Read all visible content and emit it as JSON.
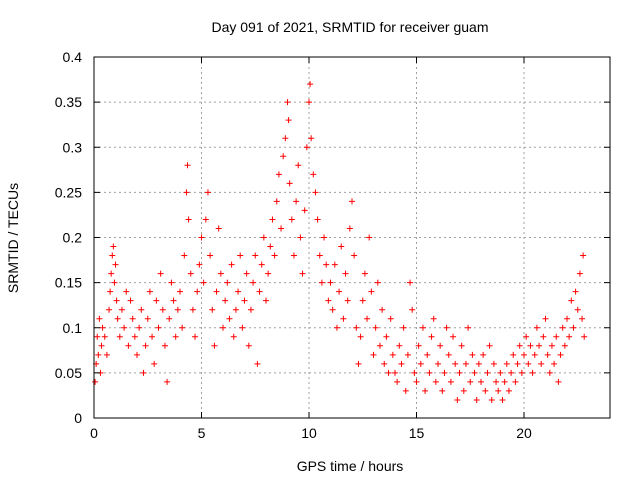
{
  "chart_data": {
    "type": "scatter",
    "title": "Day 091 of 2021, SRMTID for receiver guam",
    "xlabel": "GPS time / hours",
    "ylabel": "SRMTID / TECUs",
    "xlim": [
      0,
      24
    ],
    "ylim": [
      0,
      0.4
    ],
    "x_ticks": [
      0,
      5,
      10,
      15,
      20
    ],
    "x_tick_labels": [
      "0",
      "5",
      "10",
      "15",
      "20"
    ],
    "y_ticks": [
      0,
      0.05,
      0.1,
      0.15,
      0.2,
      0.25,
      0.3,
      0.35,
      0.4
    ],
    "y_tick_labels": [
      "0",
      "0.05",
      "0.1",
      "0.15",
      "0.2",
      "0.25",
      "0.3",
      "0.35",
      "0.4"
    ],
    "grid": true,
    "marker": "+",
    "marker_color": "#ff0000",
    "series": [
      {
        "name": "SRMTID",
        "points": [
          [
            0.05,
            0.04
          ],
          [
            0.1,
            0.06
          ],
          [
            0.15,
            0.09
          ],
          [
            0.2,
            0.07
          ],
          [
            0.25,
            0.11
          ],
          [
            0.3,
            0.05
          ],
          [
            0.35,
            0.08
          ],
          [
            0.4,
            0.1
          ],
          [
            0.5,
            0.09
          ],
          [
            0.6,
            0.07
          ],
          [
            0.7,
            0.12
          ],
          [
            0.75,
            0.14
          ],
          [
            0.8,
            0.16
          ],
          [
            0.85,
            0.18
          ],
          [
            0.9,
            0.19
          ],
          [
            0.95,
            0.15
          ],
          [
            1.0,
            0.17
          ],
          [
            1.05,
            0.13
          ],
          [
            1.1,
            0.11
          ],
          [
            1.2,
            0.09
          ],
          [
            1.3,
            0.12
          ],
          [
            1.4,
            0.1
          ],
          [
            1.5,
            0.14
          ],
          [
            1.6,
            0.08
          ],
          [
            1.7,
            0.13
          ],
          [
            1.8,
            0.11
          ],
          [
            1.9,
            0.09
          ],
          [
            2.0,
            0.07
          ],
          [
            2.1,
            0.1
          ],
          [
            2.2,
            0.12
          ],
          [
            2.3,
            0.05
          ],
          [
            2.4,
            0.08
          ],
          [
            2.5,
            0.11
          ],
          [
            2.6,
            0.14
          ],
          [
            2.7,
            0.09
          ],
          [
            2.8,
            0.06
          ],
          [
            2.9,
            0.13
          ],
          [
            3.0,
            0.1
          ],
          [
            3.1,
            0.16
          ],
          [
            3.2,
            0.12
          ],
          [
            3.3,
            0.08
          ],
          [
            3.4,
            0.04
          ],
          [
            3.5,
            0.11
          ],
          [
            3.6,
            0.15
          ],
          [
            3.7,
            0.13
          ],
          [
            3.8,
            0.09
          ],
          [
            3.9,
            0.12
          ],
          [
            4.0,
            0.14
          ],
          [
            4.1,
            0.1
          ],
          [
            4.2,
            0.18
          ],
          [
            4.3,
            0.25
          ],
          [
            4.35,
            0.28
          ],
          [
            4.4,
            0.22
          ],
          [
            4.5,
            0.16
          ],
          [
            4.6,
            0.12
          ],
          [
            4.7,
            0.09
          ],
          [
            4.8,
            0.14
          ],
          [
            4.9,
            0.17
          ],
          [
            5.0,
            0.2
          ],
          [
            5.1,
            0.15
          ],
          [
            5.2,
            0.22
          ],
          [
            5.3,
            0.25
          ],
          [
            5.4,
            0.18
          ],
          [
            5.5,
            0.12
          ],
          [
            5.6,
            0.08
          ],
          [
            5.7,
            0.14
          ],
          [
            5.8,
            0.21
          ],
          [
            5.9,
            0.16
          ],
          [
            6.0,
            0.1
          ],
          [
            6.1,
            0.13
          ],
          [
            6.2,
            0.15
          ],
          [
            6.3,
            0.11
          ],
          [
            6.4,
            0.17
          ],
          [
            6.5,
            0.09
          ],
          [
            6.6,
            0.12
          ],
          [
            6.7,
            0.14
          ],
          [
            6.8,
            0.18
          ],
          [
            6.9,
            0.1
          ],
          [
            7.0,
            0.13
          ],
          [
            7.1,
            0.16
          ],
          [
            7.2,
            0.08
          ],
          [
            7.3,
            0.12
          ],
          [
            7.4,
            0.15
          ],
          [
            7.5,
            0.18
          ],
          [
            7.6,
            0.06
          ],
          [
            7.7,
            0.14
          ],
          [
            7.8,
            0.17
          ],
          [
            7.9,
            0.2
          ],
          [
            8.0,
            0.13
          ],
          [
            8.1,
            0.16
          ],
          [
            8.2,
            0.19
          ],
          [
            8.3,
            0.22
          ],
          [
            8.4,
            0.18
          ],
          [
            8.5,
            0.24
          ],
          [
            8.6,
            0.27
          ],
          [
            8.7,
            0.21
          ],
          [
            8.8,
            0.29
          ],
          [
            8.9,
            0.31
          ],
          [
            9.0,
            0.35
          ],
          [
            9.05,
            0.33
          ],
          [
            9.1,
            0.26
          ],
          [
            9.2,
            0.22
          ],
          [
            9.3,
            0.18
          ],
          [
            9.4,
            0.24
          ],
          [
            9.5,
            0.28
          ],
          [
            9.6,
            0.2
          ],
          [
            9.7,
            0.16
          ],
          [
            9.8,
            0.23
          ],
          [
            9.9,
            0.3
          ],
          [
            10.0,
            0.35
          ],
          [
            10.05,
            0.37
          ],
          [
            10.1,
            0.31
          ],
          [
            10.2,
            0.27
          ],
          [
            10.3,
            0.25
          ],
          [
            10.4,
            0.22
          ],
          [
            10.5,
            0.18
          ],
          [
            10.6,
            0.15
          ],
          [
            10.7,
            0.2
          ],
          [
            10.8,
            0.17
          ],
          [
            10.9,
            0.13
          ],
          [
            11.0,
            0.15
          ],
          [
            11.1,
            0.12
          ],
          [
            11.2,
            0.17
          ],
          [
            11.3,
            0.1
          ],
          [
            11.4,
            0.14
          ],
          [
            11.5,
            0.19
          ],
          [
            11.6,
            0.11
          ],
          [
            11.7,
            0.16
          ],
          [
            11.8,
            0.13
          ],
          [
            11.9,
            0.21
          ],
          [
            12.0,
            0.24
          ],
          [
            12.1,
            0.18
          ],
          [
            12.2,
            0.1
          ],
          [
            12.3,
            0.06
          ],
          [
            12.4,
            0.09
          ],
          [
            12.5,
            0.13
          ],
          [
            12.6,
            0.16
          ],
          [
            12.7,
            0.11
          ],
          [
            12.8,
            0.2
          ],
          [
            12.9,
            0.14
          ],
          [
            13.0,
            0.07
          ],
          [
            13.1,
            0.1
          ],
          [
            13.2,
            0.15
          ],
          [
            13.3,
            0.08
          ],
          [
            13.4,
            0.12
          ],
          [
            13.5,
            0.06
          ],
          [
            13.6,
            0.09
          ],
          [
            13.7,
            0.05
          ],
          [
            13.8,
            0.11
          ],
          [
            13.9,
            0.07
          ],
          [
            14.0,
            0.05
          ],
          [
            14.1,
            0.04
          ],
          [
            14.2,
            0.08
          ],
          [
            14.3,
            0.06
          ],
          [
            14.4,
            0.1
          ],
          [
            14.5,
            0.03
          ],
          [
            14.6,
            0.07
          ],
          [
            14.7,
            0.15
          ],
          [
            14.8,
            0.12
          ],
          [
            14.9,
            0.05
          ],
          [
            15.0,
            0.04
          ],
          [
            15.1,
            0.08
          ],
          [
            15.2,
            0.06
          ],
          [
            15.3,
            0.1
          ],
          [
            15.4,
            0.03
          ],
          [
            15.5,
            0.07
          ],
          [
            15.6,
            0.05
          ],
          [
            15.7,
            0.09
          ],
          [
            15.8,
            0.11
          ],
          [
            15.9,
            0.04
          ],
          [
            16.0,
            0.06
          ],
          [
            16.1,
            0.08
          ],
          [
            16.2,
            0.03
          ],
          [
            16.3,
            0.05
          ],
          [
            16.4,
            0.1
          ],
          [
            16.5,
            0.07
          ],
          [
            16.6,
            0.04
          ],
          [
            16.7,
            0.09
          ],
          [
            16.8,
            0.06
          ],
          [
            16.9,
            0.02
          ],
          [
            17.0,
            0.05
          ],
          [
            17.1,
            0.08
          ],
          [
            17.2,
            0.03
          ],
          [
            17.3,
            0.06
          ],
          [
            17.4,
            0.1
          ],
          [
            17.5,
            0.04
          ],
          [
            17.6,
            0.07
          ],
          [
            17.7,
            0.05
          ],
          [
            17.8,
            0.02
          ],
          [
            17.9,
            0.06
          ],
          [
            18.0,
            0.04
          ],
          [
            18.1,
            0.07
          ],
          [
            18.2,
            0.03
          ],
          [
            18.3,
            0.05
          ],
          [
            18.4,
            0.08
          ],
          [
            18.5,
            0.02
          ],
          [
            18.6,
            0.06
          ],
          [
            18.7,
            0.04
          ],
          [
            18.8,
            0.03
          ],
          [
            18.9,
            0.05
          ],
          [
            19.0,
            0.02
          ],
          [
            19.1,
            0.04
          ],
          [
            19.2,
            0.06
          ],
          [
            19.3,
            0.03
          ],
          [
            19.4,
            0.05
          ],
          [
            19.5,
            0.07
          ],
          [
            19.6,
            0.04
          ],
          [
            19.7,
            0.06
          ],
          [
            19.8,
            0.08
          ],
          [
            19.9,
            0.05
          ],
          [
            20.0,
            0.07
          ],
          [
            20.1,
            0.09
          ],
          [
            20.2,
            0.06
          ],
          [
            20.3,
            0.08
          ],
          [
            20.4,
            0.05
          ],
          [
            20.5,
            0.07
          ],
          [
            20.6,
            0.1
          ],
          [
            20.7,
            0.08
          ],
          [
            20.8,
            0.06
          ],
          [
            20.9,
            0.09
          ],
          [
            21.0,
            0.11
          ],
          [
            21.1,
            0.07
          ],
          [
            21.2,
            0.05
          ],
          [
            21.3,
            0.08
          ],
          [
            21.4,
            0.06
          ],
          [
            21.5,
            0.09
          ],
          [
            21.6,
            0.04
          ],
          [
            21.7,
            0.07
          ],
          [
            21.8,
            0.1
          ],
          [
            21.9,
            0.08
          ],
          [
            22.0,
            0.11
          ],
          [
            22.1,
            0.09
          ],
          [
            22.2,
            0.13
          ],
          [
            22.3,
            0.1
          ],
          [
            22.4,
            0.14
          ],
          [
            22.5,
            0.12
          ],
          [
            22.6,
            0.16
          ],
          [
            22.7,
            0.11
          ],
          [
            22.75,
            0.18
          ],
          [
            22.8,
            0.09
          ]
        ]
      }
    ]
  }
}
